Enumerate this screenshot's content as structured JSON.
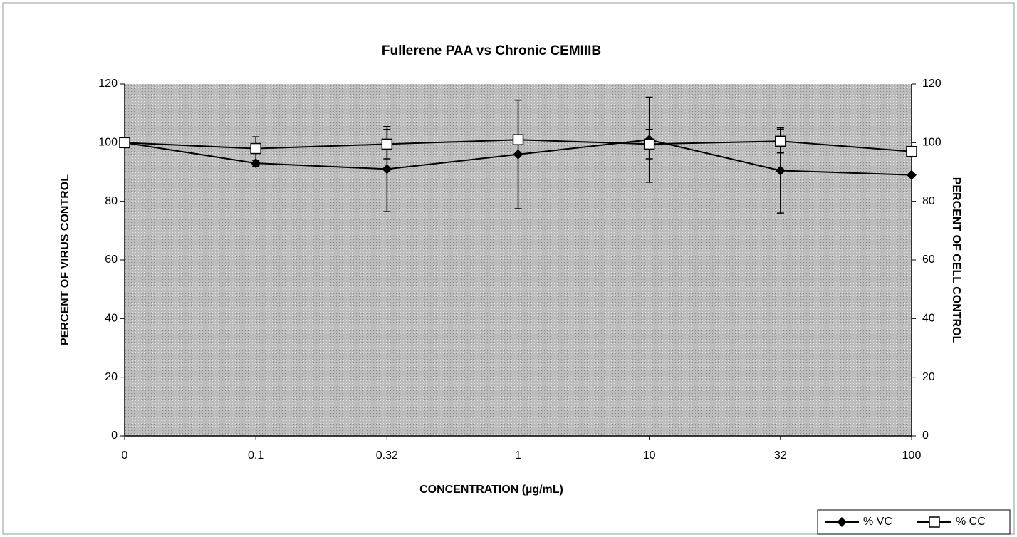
{
  "chart_data": {
    "type": "line",
    "title": "Fullerene PAA  vs Chronic CEMIIIB",
    "x_label": "CONCENTRATION (µg/mL)",
    "y_label": "PERCENT OF VIRUS CONTROL",
    "y2_label": "PERCENT OF CELL CONTROL",
    "categories": [
      "0",
      "0.1",
      "0.32",
      "1",
      "10",
      "32",
      "100"
    ],
    "series": [
      {
        "name": "% VC",
        "color": "#000000",
        "marker": "diamond",
        "axis": "y",
        "values": [
          100,
          93,
          91,
          96,
          101,
          90.5,
          89
        ],
        "errors": [
          null,
          1,
          14.5,
          18.5,
          14.5,
          14.5,
          null
        ]
      },
      {
        "name": "% CC",
        "color": "#000000",
        "marker": "square",
        "axis": "y2",
        "values": [
          100,
          98,
          99.5,
          101,
          99.5,
          100.5,
          97
        ],
        "errors": [
          null,
          4,
          5,
          null,
          5,
          4,
          null
        ]
      }
    ],
    "ylim": [
      0,
      120
    ],
    "yticks": [
      0,
      20,
      40,
      60,
      80,
      100,
      120
    ],
    "y2lim": [
      0,
      120
    ],
    "y2ticks": [
      0,
      20,
      40,
      60,
      80,
      100,
      120
    ],
    "legend": "bottom-right"
  }
}
